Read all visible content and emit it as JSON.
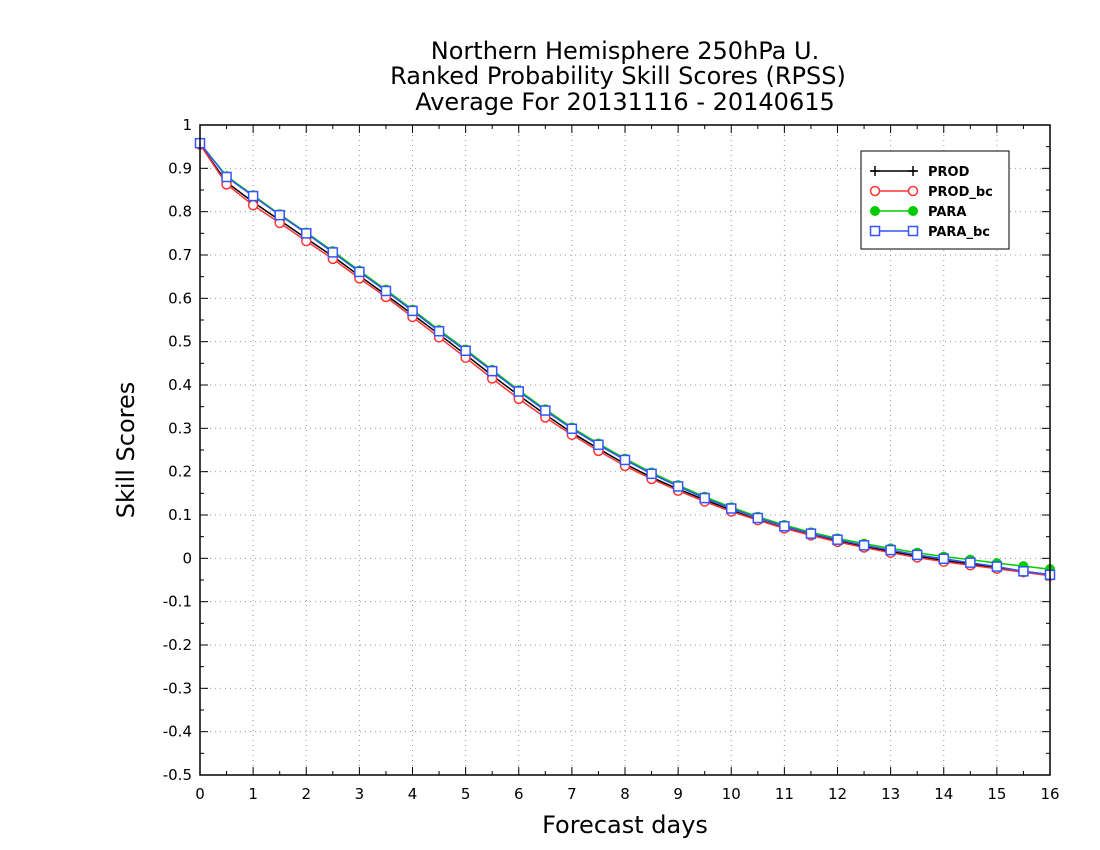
{
  "chart_data": {
    "type": "line",
    "title_lines": [
      "Northern Hemisphere 250hPa U.",
      "Ranked Probability Skill Scores (RPSS)",
      "Average For 20131116 - 20140615"
    ],
    "xlabel": "Forecast days",
    "ylabel": "Skill Scores",
    "xlim": [
      0,
      16
    ],
    "ylim": [
      -0.5,
      1
    ],
    "xticks": [
      0,
      1,
      2,
      3,
      4,
      5,
      6,
      7,
      8,
      9,
      10,
      11,
      12,
      13,
      14,
      15,
      16
    ],
    "yticks": [
      -0.5,
      -0.4,
      -0.3,
      -0.2,
      -0.1,
      0,
      0.1,
      0.2,
      0.3,
      0.4,
      0.5,
      0.6,
      0.7,
      0.8,
      0.9,
      1
    ],
    "ytick_labels": [
      "-0.5",
      "-0.4",
      "-0.3",
      "-0.2",
      "-0.1",
      "0",
      "0.1",
      "0.2",
      "0.3",
      "0.4",
      "0.5",
      "0.6",
      "0.7",
      "0.8",
      "0.9",
      "1"
    ],
    "grid": true,
    "legend_position": "top-right",
    "x": [
      0,
      0.5,
      1,
      1.5,
      2,
      2.5,
      3,
      3.5,
      4,
      4.5,
      5,
      5.5,
      6,
      6.5,
      7,
      7.5,
      8,
      8.5,
      9,
      9.5,
      10,
      10.5,
      11,
      11.5,
      12,
      12.5,
      13,
      13.5,
      14,
      14.5,
      15,
      15.5,
      16
    ],
    "series": [
      {
        "name": "PROD",
        "color": "#000000",
        "marker": "plus",
        "values": [
          0.955,
          0.868,
          0.822,
          0.78,
          0.738,
          0.697,
          0.652,
          0.608,
          0.563,
          0.517,
          0.47,
          0.422,
          0.376,
          0.332,
          0.29,
          0.253,
          0.218,
          0.187,
          0.16,
          0.135,
          0.111,
          0.089,
          0.07,
          0.054,
          0.04,
          0.027,
          0.016,
          0.005,
          -0.005,
          -0.013,
          -0.022,
          -0.03,
          -0.038
        ]
      },
      {
        "name": "PROD_bc",
        "color": "#ff3333",
        "marker": "circle",
        "values": [
          0.955,
          0.863,
          0.815,
          0.774,
          0.732,
          0.691,
          0.646,
          0.603,
          0.557,
          0.51,
          0.463,
          0.415,
          0.368,
          0.325,
          0.285,
          0.248,
          0.213,
          0.183,
          0.156,
          0.131,
          0.108,
          0.088,
          0.069,
          0.053,
          0.038,
          0.025,
          0.013,
          0.002,
          -0.008,
          -0.016,
          -0.024,
          -0.032,
          -0.04
        ]
      },
      {
        "name": "PARA",
        "color": "#00cc00",
        "marker": "filled-circle",
        "values": [
          0.958,
          0.882,
          0.838,
          0.794,
          0.752,
          0.709,
          0.664,
          0.62,
          0.574,
          0.527,
          0.482,
          0.435,
          0.388,
          0.344,
          0.302,
          0.265,
          0.23,
          0.198,
          0.169,
          0.142,
          0.118,
          0.096,
          0.077,
          0.06,
          0.046,
          0.034,
          0.023,
          0.013,
          0.004,
          -0.003,
          -0.011,
          -0.018,
          -0.025
        ]
      },
      {
        "name": "PARA_bc",
        "color": "#3355ff",
        "marker": "square",
        "values": [
          0.958,
          0.88,
          0.836,
          0.792,
          0.75,
          0.706,
          0.661,
          0.617,
          0.571,
          0.524,
          0.479,
          0.432,
          0.385,
          0.341,
          0.299,
          0.262,
          0.227,
          0.195,
          0.166,
          0.139,
          0.115,
          0.093,
          0.074,
          0.057,
          0.043,
          0.03,
          0.019,
          0.008,
          -0.001,
          -0.01,
          -0.019,
          -0.03,
          -0.038
        ]
      }
    ]
  }
}
